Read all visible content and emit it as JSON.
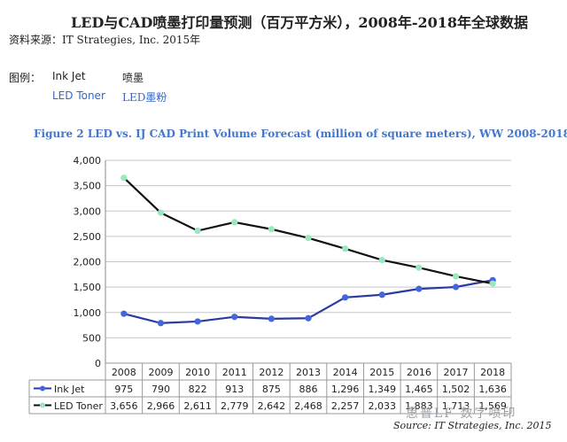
{
  "header": {
    "title": "LED与CAD喷墨打印量预测（百万平方米），2008年-2018年全球数据",
    "source": "资料来源：IT Strategies, Inc. 2015年"
  },
  "legend_cn": {
    "label": "图例：",
    "rows": [
      {
        "en": "Ink Jet",
        "cn": "喷墨",
        "color": "#222222"
      },
      {
        "en": "LED Toner",
        "cn": "LED墨粉",
        "color": "#3366cc"
      }
    ]
  },
  "figure": {
    "title": "Figure 2   LED vs. IJ CAD Print Volume Forecast (million of square meters), WW 2008-2018",
    "source": "Source: IT Strategies, Inc. 2015"
  },
  "watermark": "惠普LF  数字喷印",
  "chart_data": {
    "type": "line",
    "x": [
      "2008",
      "2009",
      "2010",
      "2011",
      "2012",
      "2013",
      "2014",
      "2015",
      "2016",
      "2017",
      "2018"
    ],
    "ylim": [
      0,
      4000
    ],
    "yticks": [
      "0",
      "500",
      "1,000",
      "1,500",
      "2,000",
      "2,500",
      "3,000",
      "3,500",
      "4,000"
    ],
    "grid": true,
    "series": [
      {
        "name": "Ink Jet",
        "values": [
          975,
          790,
          822,
          913,
          875,
          886,
          1296,
          1349,
          1465,
          1502,
          1636
        ],
        "labels": [
          "975",
          "790",
          "822",
          "913",
          "875",
          "886",
          "1,296",
          "1,349",
          "1,465",
          "1,502",
          "1,636"
        ],
        "color": "#2b3aa0",
        "marker": "#4466dd"
      },
      {
        "name": "LED Toner",
        "values": [
          3656,
          2966,
          2611,
          2779,
          2642,
          2468,
          2257,
          2033,
          1883,
          1713,
          1569
        ],
        "labels": [
          "3,656",
          "2,966",
          "2,611",
          "2,779",
          "2,642",
          "2,468",
          "2,257",
          "2,033",
          "1,883",
          "1,713",
          "1,569"
        ],
        "color": "#111111",
        "marker": "#9be8c0"
      }
    ]
  }
}
